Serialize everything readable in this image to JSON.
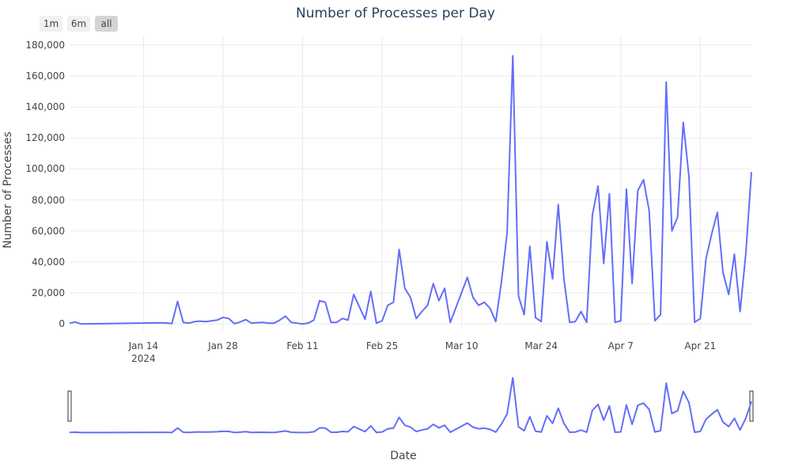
{
  "chart_data": {
    "type": "line",
    "title": "Number of Processes per Day",
    "xlabel": "Date",
    "ylabel": "Number of Processes",
    "color": "#636efa",
    "buttons": [
      "1m",
      "6m",
      "all"
    ],
    "active_button": 2,
    "rangeslider": true,
    "grid": true,
    "x": [
      "2024-01-01",
      "2024-01-02",
      "2024-01-03",
      "2024-01-17",
      "2024-01-18",
      "2024-01-19",
      "2024-01-20",
      "2024-01-21",
      "2024-01-22",
      "2024-01-23",
      "2024-01-24",
      "2024-01-25",
      "2024-01-26",
      "2024-01-27",
      "2024-01-28",
      "2024-01-29",
      "2024-01-30",
      "2024-01-31",
      "2024-02-01",
      "2024-02-02",
      "2024-02-03",
      "2024-02-04",
      "2024-02-05",
      "2024-02-06",
      "2024-02-07",
      "2024-02-08",
      "2024-02-09",
      "2024-02-10",
      "2024-02-11",
      "2024-02-12",
      "2024-02-13",
      "2024-02-14",
      "2024-02-15",
      "2024-02-16",
      "2024-02-17",
      "2024-02-18",
      "2024-02-19",
      "2024-02-20",
      "2024-02-21",
      "2024-02-22",
      "2024-02-23",
      "2024-02-24",
      "2024-02-25",
      "2024-02-26",
      "2024-02-27",
      "2024-02-28",
      "2024-02-29",
      "2024-03-01",
      "2024-03-02",
      "2024-03-03",
      "2024-03-04",
      "2024-03-05",
      "2024-03-06",
      "2024-03-07",
      "2024-03-08",
      "2024-03-11",
      "2024-03-12",
      "2024-03-13",
      "2024-03-14",
      "2024-03-15",
      "2024-03-16",
      "2024-03-17",
      "2024-03-18",
      "2024-03-19",
      "2024-03-20",
      "2024-03-21",
      "2024-03-22",
      "2024-03-23",
      "2024-03-24",
      "2024-03-25",
      "2024-03-26",
      "2024-03-27",
      "2024-03-28",
      "2024-03-29",
      "2024-03-30",
      "2024-03-31",
      "2024-04-01",
      "2024-04-02",
      "2024-04-03",
      "2024-04-04",
      "2024-04-05",
      "2024-04-06",
      "2024-04-07",
      "2024-04-08",
      "2024-04-09",
      "2024-04-10",
      "2024-04-11",
      "2024-04-12",
      "2024-04-13",
      "2024-04-14",
      "2024-04-15",
      "2024-04-16",
      "2024-04-17",
      "2024-04-18",
      "2024-04-19",
      "2024-04-20",
      "2024-04-21",
      "2024-04-22",
      "2024-04-23",
      "2024-04-24",
      "2024-04-25",
      "2024-04-26",
      "2024-04-27",
      "2024-04-28",
      "2024-04-29",
      "2024-04-30"
    ],
    "values": [
      500,
      1200,
      0,
      700,
      600,
      200,
      14500,
      1000,
      500,
      1500,
      1800,
      1500,
      2000,
      2500,
      4200,
      3500,
      200,
      1200,
      2800,
      500,
      800,
      1000,
      500,
      500,
      2500,
      5000,
      1000,
      500,
      0,
      500,
      2500,
      15000,
      14000,
      1000,
      1000,
      3500,
      2500,
      19000,
      11000,
      3000,
      21000,
      500,
      2000,
      12000,
      14000,
      48000,
      23000,
      17000,
      3500,
      8000,
      12000,
      26000,
      15000,
      23000,
      1000,
      30000,
      17000,
      12000,
      14000,
      10000,
      1500,
      27000,
      59000,
      173000,
      18000,
      6000,
      50000,
      4000,
      1500,
      53000,
      29000,
      77000,
      29000,
      1000,
      1500,
      8000,
      1000,
      70000,
      89000,
      39000,
      84000,
      1000,
      2000,
      87000,
      26000,
      86000,
      93000,
      73000,
      2000,
      6000,
      156000,
      60000,
      69000,
      130000,
      95000,
      1000,
      3500,
      42000,
      58000,
      72000,
      33000,
      19000,
      45000,
      8000,
      45000,
      98000
    ],
    "xlim": [
      "2024-01-01",
      "2024-04-30"
    ],
    "xticks": [
      {
        "value": "2024-01-14",
        "label": "Jan 14\n2024"
      },
      {
        "value": "2024-01-28",
        "label": "Jan 28"
      },
      {
        "value": "2024-02-11",
        "label": "Feb 11"
      },
      {
        "value": "2024-02-25",
        "label": "Feb 25"
      },
      {
        "value": "2024-03-10",
        "label": "Mar 10"
      },
      {
        "value": "2024-03-24",
        "label": "Mar 24"
      },
      {
        "value": "2024-04-07",
        "label": "Apr 7"
      },
      {
        "value": "2024-04-21",
        "label": "Apr 21"
      }
    ],
    "ylim": [
      -4000,
      186000
    ],
    "yticks": [
      0,
      {
        "value": 20000,
        "label": "20,000"
      },
      {
        "value": 40000,
        "label": "40,000"
      },
      {
        "value": 60000,
        "label": "60,000"
      },
      {
        "value": 80000,
        "label": "80,000"
      },
      {
        "value": 100000,
        "label": "100,000"
      },
      {
        "value": 120000,
        "label": "120,000"
      },
      {
        "value": 140000,
        "label": "140,000"
      },
      {
        "value": 160000,
        "label": "160,000"
      },
      {
        "value": 180000,
        "label": "180,000"
      }
    ]
  }
}
